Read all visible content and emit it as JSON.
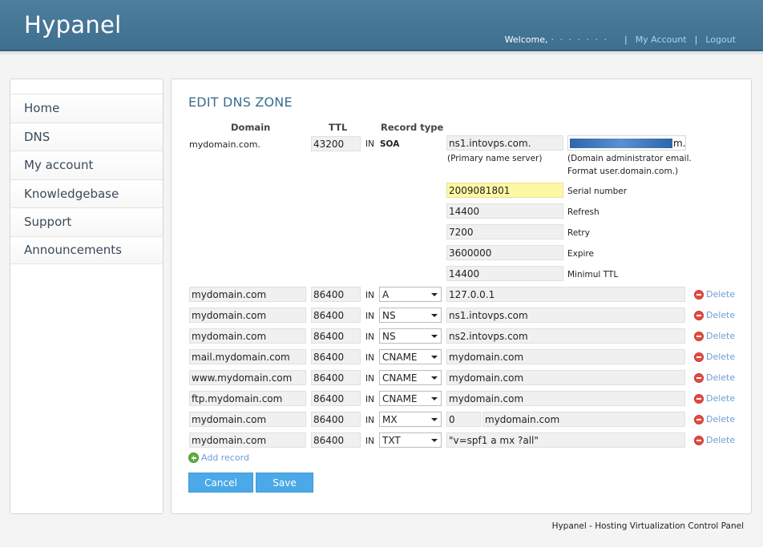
{
  "app": {
    "logo": "Hypanel",
    "welcome": "Welcome,",
    "username_masked": "· · · · · · ·",
    "my_account": "My Account",
    "logout": "Logout"
  },
  "sidebar": {
    "items": [
      {
        "label": "Home"
      },
      {
        "label": "DNS"
      },
      {
        "label": "My account"
      },
      {
        "label": "Knowledgebase"
      },
      {
        "label": "Support"
      },
      {
        "label": "Announcements"
      }
    ]
  },
  "page": {
    "title": "EDIT DNS ZONE",
    "columns": {
      "domain": "Domain",
      "ttl": "TTL",
      "record_type": "Record type"
    }
  },
  "soa": {
    "domain": "mydomain.com.",
    "ttl": "43200",
    "class": "IN",
    "type": "SOA",
    "primary_ns": "ns1.intovps.com.",
    "primary_ns_hint": "(Primary name server)",
    "email_suffix": "m.",
    "email_hint_line1": "(Domain administrator email.",
    "email_hint_line2": "Format user.domain.com.)",
    "serial": "2009081801",
    "serial_label": "Serial number",
    "refresh": "14400",
    "refresh_label": "Refresh",
    "retry": "7200",
    "retry_label": "Retry",
    "expire": "3600000",
    "expire_label": "Expire",
    "minttl": "14400",
    "minttl_label": "Minimul TTL"
  },
  "records": [
    {
      "name": "mydomain.com",
      "ttl": "86400",
      "class": "IN",
      "type": "A",
      "value": "127.0.0.1",
      "delete": "Delete"
    },
    {
      "name": "mydomain.com",
      "ttl": "86400",
      "class": "IN",
      "type": "NS",
      "value": "ns1.intovps.com",
      "delete": "Delete"
    },
    {
      "name": "mydomain.com",
      "ttl": "86400",
      "class": "IN",
      "type": "NS",
      "value": "ns2.intovps.com",
      "delete": "Delete"
    },
    {
      "name": "mail.mydomain.com",
      "ttl": "86400",
      "class": "IN",
      "type": "CNAME",
      "value": "mydomain.com",
      "delete": "Delete"
    },
    {
      "name": "www.mydomain.com",
      "ttl": "86400",
      "class": "IN",
      "type": "CNAME",
      "value": "mydomain.com",
      "delete": "Delete"
    },
    {
      "name": "ftp.mydomain.com",
      "ttl": "86400",
      "class": "IN",
      "type": "CNAME",
      "value": "mydomain.com",
      "delete": "Delete"
    },
    {
      "name": "mydomain.com",
      "ttl": "86400",
      "class": "IN",
      "type": "MX",
      "priority": "0",
      "value": "mydomain.com",
      "delete": "Delete"
    },
    {
      "name": "mydomain.com",
      "ttl": "86400",
      "class": "IN",
      "type": "TXT",
      "value": "\"v=spf1 a mx ?all\"",
      "delete": "Delete"
    }
  ],
  "actions": {
    "add_record": "Add record",
    "cancel": "Cancel",
    "save": "Save"
  },
  "footer": {
    "text": "Hypanel - Hosting Virtualization Control Panel"
  },
  "icons": {
    "delete": "minus-circle-icon",
    "add": "plus-circle-icon",
    "select": "chevron-down-icon"
  },
  "colors": {
    "header": "#4d7e9e",
    "title": "#3a6d8e",
    "button": "#4aa9e6",
    "delete_icon": "#e34c3f",
    "add_icon": "#5fae3d",
    "serial_highlight": "#fdf8a4"
  }
}
